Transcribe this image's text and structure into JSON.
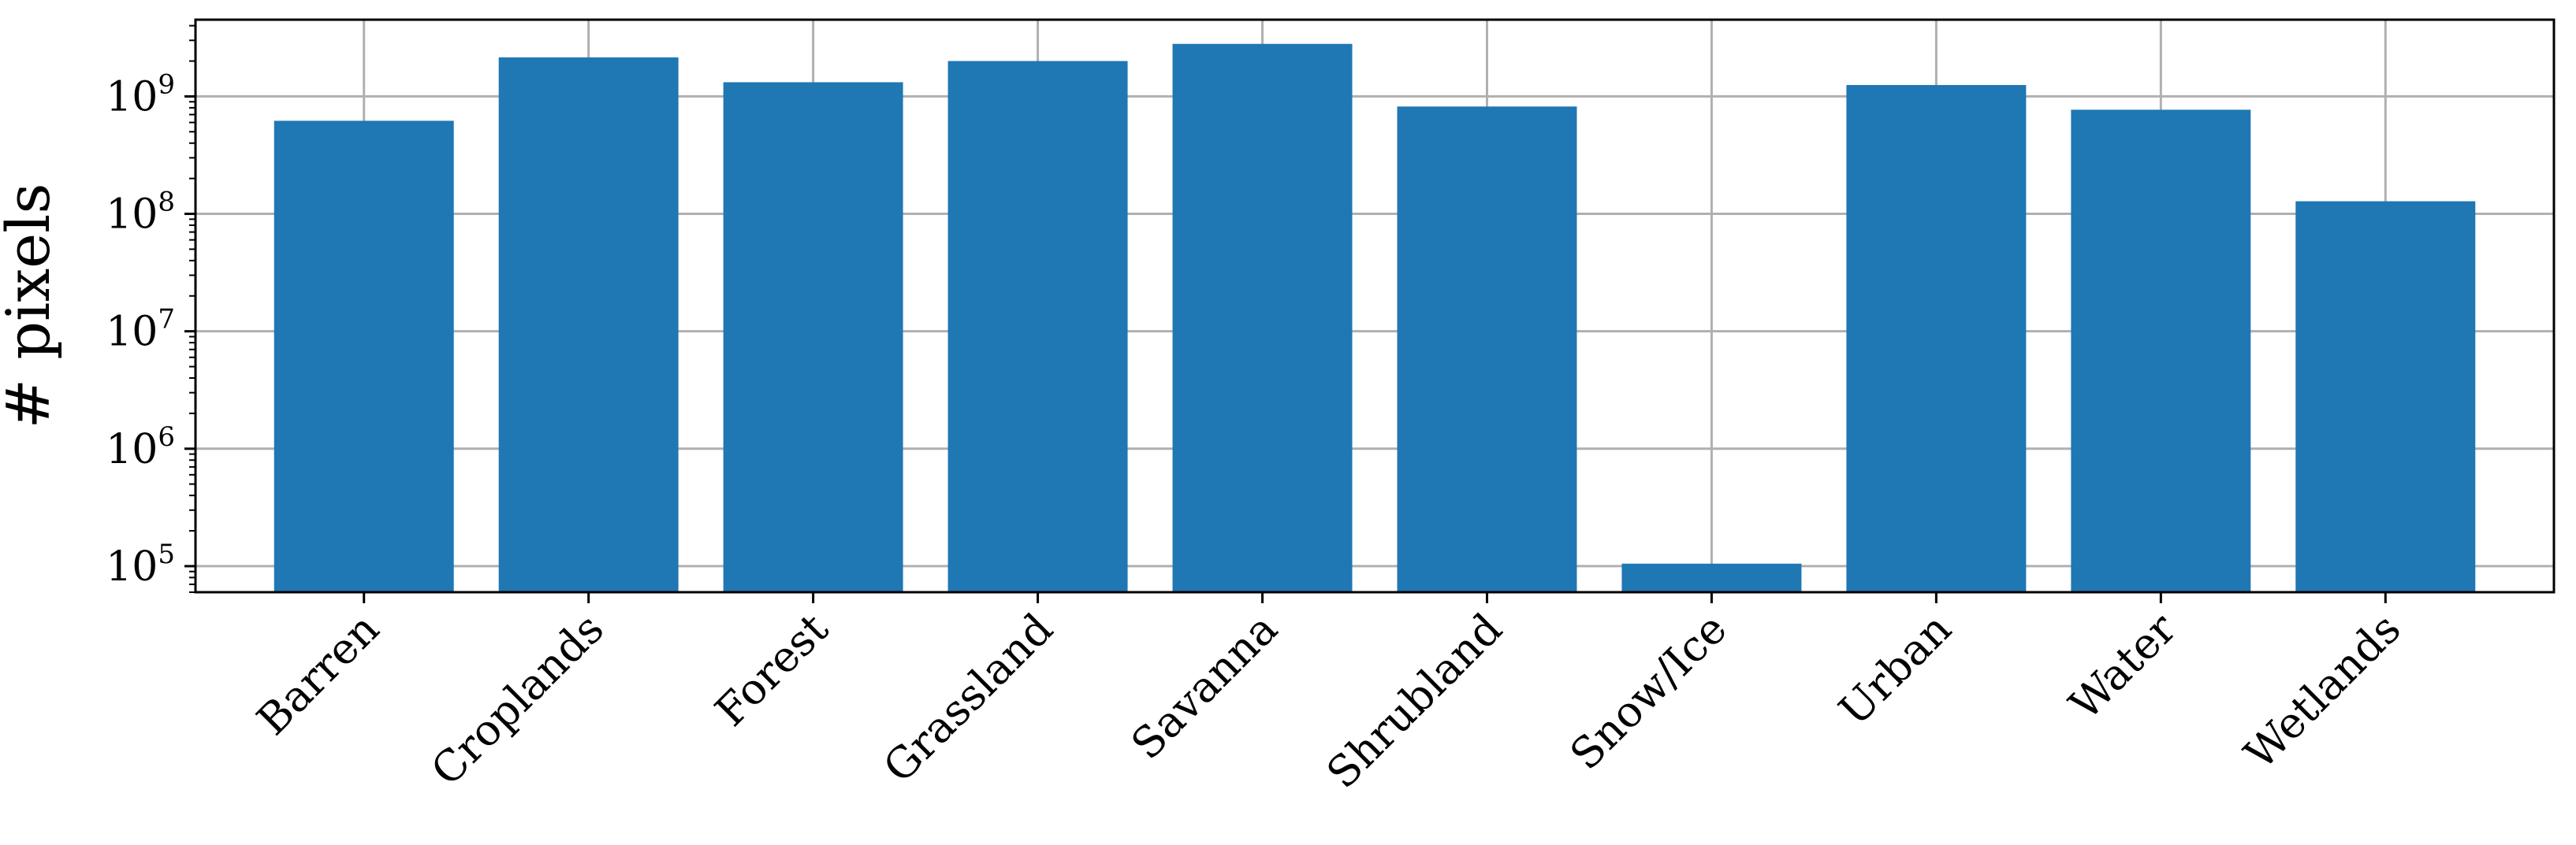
{
  "chart_data": {
    "type": "bar",
    "ylabel": "# pixels",
    "xlabel": "",
    "title": "",
    "yscale": "log",
    "ylim": [
      60000,
      4500000000
    ],
    "grid": true,
    "bar_color": "#1f77b4",
    "categories": [
      "Barren",
      "Croplands",
      "Forest",
      "Grassland",
      "Savanna",
      "Shrubland",
      "Snow/Ice",
      "Urban",
      "Water",
      "Wetlands"
    ],
    "values": [
      620000000,
      2150000000,
      1320000000,
      2000000000,
      2800000000,
      820000000,
      105000,
      1250000000,
      770000000,
      128000000
    ],
    "y_ticks": [
      {
        "base": "10",
        "exp": "5",
        "value": 100000
      },
      {
        "base": "10",
        "exp": "6",
        "value": 1000000
      },
      {
        "base": "10",
        "exp": "7",
        "value": 10000000
      },
      {
        "base": "10",
        "exp": "8",
        "value": 100000000
      },
      {
        "base": "10",
        "exp": "9",
        "value": 1000000000
      }
    ]
  }
}
